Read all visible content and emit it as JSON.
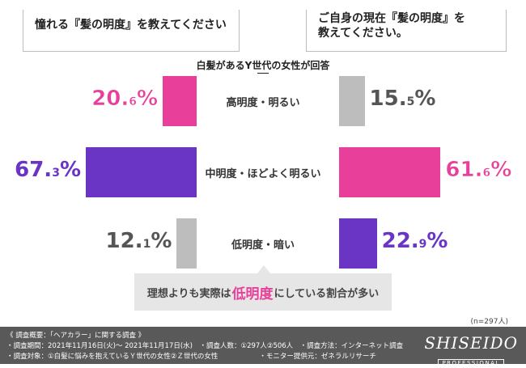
{
  "questions": {
    "left": "憧れる『髪の明度』を教えてください",
    "right_line1": "ご自身の現在『髪の明度』を",
    "right_line2": "教えてください。"
  },
  "subtitle": "白髪があるY世代の女性が回答",
  "chart_data": {
    "type": "bar",
    "categories": [
      "高明度・明るい",
      "中明度・ほどよく明るい",
      "低明度・暗い"
    ],
    "series": [
      {
        "name": "憧れる『髪の明度』を教えてください",
        "values": [
          20.6,
          67.3,
          12.1
        ]
      },
      {
        "name": "ご自身の現在『髪の明度』を教えてください。",
        "values": [
          15.5,
          61.6,
          22.9
        ]
      }
    ],
    "title": "白髪があるY世代の女性が回答",
    "xlabel": "",
    "ylabel": "",
    "unit": "%",
    "sample": "n=297人"
  },
  "labels": {
    "left": [
      [
        "20.",
        "6",
        "%"
      ],
      [
        "67.",
        "3",
        "%"
      ],
      [
        "12.",
        "1",
        "%"
      ]
    ],
    "right": [
      [
        "15.",
        "5",
        "%"
      ],
      [
        "61.",
        "6",
        "%"
      ],
      [
        "22.",
        "9",
        "%"
      ]
    ]
  },
  "colors": {
    "pink": "#e8409a",
    "purple": "#6a35c4",
    "gray": "#bdbdbd"
  },
  "callout": {
    "pre": "理想よりも実際は",
    "highlight": "低明度",
    "post": "にしている割合が多い"
  },
  "note": "(n=297人)",
  "footer": {
    "line1": "《 調査概要：「ヘアカラー」に関する調査 》",
    "line2": "・調査期間：2021年11月16日(火)～ 2021年11月17日(水)　・調査人数：①297人②506人　・調査方法：インターネット調査",
    "line3": "・調査対象：①白髪に悩みを抱えているＹ世代の女性②Ｚ世代の女性　　　　　　・モニター提供元：ゼネラルリサーチ",
    "logo_name": "SHISEIDO",
    "logo_sub": "PROFESSIONAL"
  }
}
